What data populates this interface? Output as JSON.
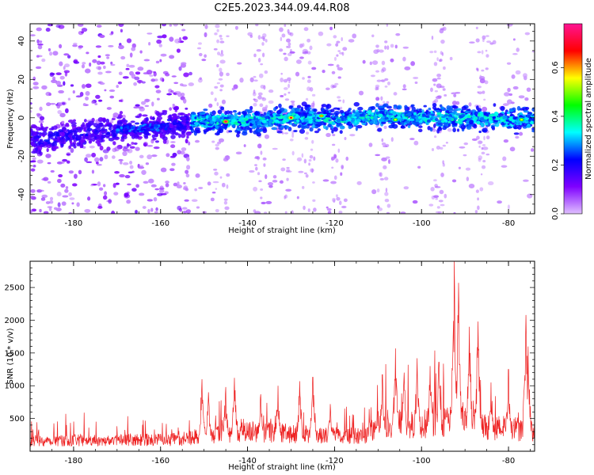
{
  "title": "C2E5.2023.344.09.44.R08",
  "chart_data": [
    {
      "type": "heatmap",
      "xlabel": "Height of straight line (km)",
      "ylabel": "Frequency (Hz)",
      "xlim": [
        -190,
        -74
      ],
      "ylim": [
        -50,
        49
      ],
      "xticks": [
        -180,
        -160,
        -140,
        -120,
        -100,
        -80
      ],
      "yticks": [
        -40,
        -20,
        0,
        20,
        40
      ],
      "colorbar": {
        "label": "Normalized spectral amplitude",
        "range": [
          0.0,
          0.78
        ],
        "ticks": [
          0.0,
          0.2,
          0.4,
          0.6
        ],
        "colormap": "gist_rainbow_r",
        "colors": [
          "#e0c0ff",
          "#7f00ff",
          "#0000ff",
          "#00ffff",
          "#00ff00",
          "#ffff00",
          "#ff0000",
          "#ff1493"
        ]
      },
      "band_center_hz": [
        {
          "x": -190,
          "y": -12
        },
        {
          "x": -180,
          "y": -10
        },
        {
          "x": -170,
          "y": -6
        },
        {
          "x": -160,
          "y": -5
        },
        {
          "x": -155,
          "y": -3
        },
        {
          "x": -150,
          "y": -1
        },
        {
          "x": -140,
          "y": -2
        },
        {
          "x": -130,
          "y": 0
        },
        {
          "x": -120,
          "y": -1
        },
        {
          "x": -110,
          "y": 1
        },
        {
          "x": -100,
          "y": 0
        },
        {
          "x": -90,
          "y": 0
        },
        {
          "x": -80,
          "y": -1
        },
        {
          "x": -74,
          "y": -1
        }
      ],
      "hotspots": [
        {
          "x": -145,
          "y": -2,
          "value": 0.75
        },
        {
          "x": -130,
          "y": 0,
          "value": 0.7
        },
        {
          "x": -123,
          "y": 1,
          "value": 0.6
        },
        {
          "x": -106,
          "y": -1,
          "value": 0.55
        },
        {
          "x": -77,
          "y": -1,
          "value": 0.55
        }
      ]
    },
    {
      "type": "line",
      "xlabel": "Height of straight line (km)",
      "ylabel": "SNR (10 * v/v)",
      "xlim": [
        -190,
        -74
      ],
      "ylim": [
        0,
        2900
      ],
      "xticks": [
        -180,
        -160,
        -140,
        -120,
        -100,
        -80
      ],
      "yticks": [
        500,
        1000,
        1500,
        2000,
        2500
      ],
      "color": "#ee2222",
      "series": [
        {
          "baseline": [
            {
              "x": -190,
              "y": 160
            },
            {
              "x": -170,
              "y": 170
            },
            {
              "x": -155,
              "y": 180
            },
            {
              "x": -150,
              "y": 250
            },
            {
              "x": -140,
              "y": 300
            },
            {
              "x": -130,
              "y": 270
            },
            {
              "x": -120,
              "y": 250
            },
            {
              "x": -113,
              "y": 230
            },
            {
              "x": -110,
              "y": 400
            },
            {
              "x": -100,
              "y": 420
            },
            {
              "x": -93,
              "y": 480
            },
            {
              "x": -85,
              "y": 380
            },
            {
              "x": -80,
              "y": 350
            },
            {
              "x": -74,
              "y": 300
            }
          ],
          "peaks": [
            {
              "x": -150.5,
              "y": 1100
            },
            {
              "x": -149,
              "y": 900
            },
            {
              "x": -145,
              "y": 980
            },
            {
              "x": -143,
              "y": 1120
            },
            {
              "x": -137,
              "y": 870
            },
            {
              "x": -133,
              "y": 1000
            },
            {
              "x": -128,
              "y": 1070
            },
            {
              "x": -125,
              "y": 1130
            },
            {
              "x": -121,
              "y": 720
            },
            {
              "x": -109,
              "y": 1170
            },
            {
              "x": -106,
              "y": 1570
            },
            {
              "x": -104,
              "y": 1200
            },
            {
              "x": -101,
              "y": 1420
            },
            {
              "x": -98,
              "y": 1300
            },
            {
              "x": -96,
              "y": 1360
            },
            {
              "x": -92.5,
              "y": 2900
            },
            {
              "x": -91.5,
              "y": 2570
            },
            {
              "x": -89,
              "y": 1900
            },
            {
              "x": -87,
              "y": 1980
            },
            {
              "x": -84,
              "y": 1050
            },
            {
              "x": -80,
              "y": 1250
            },
            {
              "x": -76,
              "y": 2080
            },
            {
              "x": -75.5,
              "y": 1600
            }
          ]
        }
      ]
    }
  ]
}
